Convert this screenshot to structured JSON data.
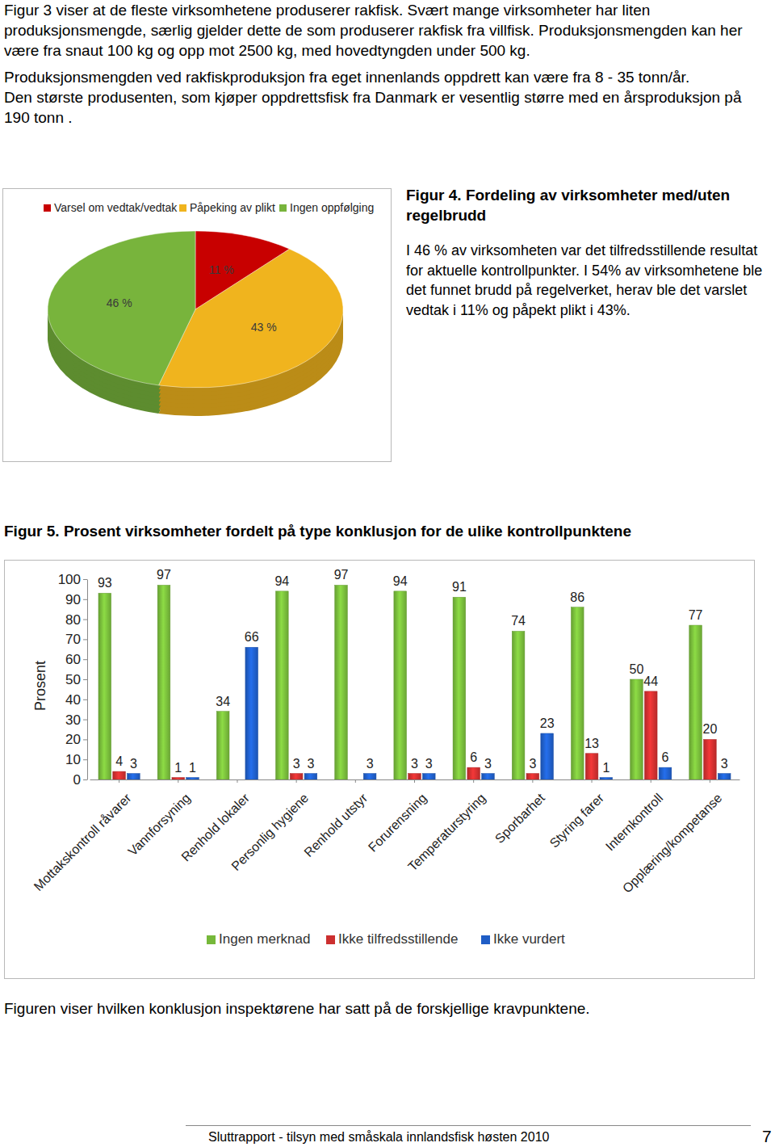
{
  "document": {
    "paragraphs": [
      "Figur 3 viser at de fleste virksomhetene produserer rakfisk. Svært mange virksomheter har liten produksjonsmengde, særlig gjelder dette de som produserer rakfisk fra villfisk. Produksjonsmengden kan her være fra snaut 100 kg og opp mot 2500 kg, med hovedtyngden under 500 kg.",
      "Produksjonsmengden ved rakfiskproduksjon fra eget innenlands oppdrett kan være fra 8 - 35 tonn/år.",
      "Den største produsenten, som kjøper oppdrettsfisk fra Danmark er vesentlig større med en årsproduksjon på 190 tonn ."
    ],
    "figure4_text": "I 46 % av virksomheten var det tilfredsstillende resultat for aktuelle kontrollpunkter. I 54% av virksomhetene ble det funnet brudd på regelverket, herav ble det varslet vedtak i 11% og påpekt plikt i 43%.",
    "figure5_note": "Figuren viser hvilken konklusjon inspektørene har satt på de forskjellige kravpunktene.",
    "footer": "Sluttrapport - tilsyn med småskala innlandsfisk høsten 2010",
    "page_number": "7"
  },
  "chart_data": [
    {
      "type": "pie",
      "title": "Figur 4. Fordeling av virksomheter med/uten regelbrudd",
      "categories": [
        "Varsel om vedtak/vedtak",
        "Påpeking av plikt",
        "Ingen oppfølging"
      ],
      "values": [
        11,
        43,
        46
      ],
      "value_labels": [
        "11 %",
        "43 %",
        "46 %"
      ],
      "colors": [
        "#c80000",
        "#f0b41e",
        "#78b43c"
      ],
      "legend": "top",
      "data_labels": true
    },
    {
      "type": "bar",
      "title": "Figur 5. Prosent virksomheter fordelt på type konklusjon for de ulike kontrollpunktene",
      "y_label": "Prosent",
      "categories": [
        "Mottakskontroll råvarer",
        "Vannforsyning",
        "Renhold lokaler",
        "Personlig hygiene",
        "Renhold utstyr",
        "Forurensning",
        "Temperaturstyring",
        "Sporbarhet",
        "Styring farer",
        "Internkontroll",
        "Opplæring/kompetanse"
      ],
      "series": [
        {
          "name": "Ingen merknad",
          "color": "#76b83a",
          "values": [
            93,
            97,
            34,
            94,
            97,
            94,
            91,
            74,
            86,
            50,
            77
          ]
        },
        {
          "name": "Ikke tilfredsstillende",
          "color": "#cc2f2f",
          "values": [
            4,
            1,
            null,
            3,
            null,
            3,
            6,
            3,
            13,
            44,
            20
          ]
        },
        {
          "name": "Ikke vurdert",
          "color": "#1f5dc6",
          "values": [
            3,
            1,
            66,
            3,
            3,
            3,
            3,
            23,
            1,
            6,
            3
          ]
        }
      ],
      "ylim": [
        0,
        100
      ],
      "yticks": [
        0,
        10,
        20,
        30,
        40,
        50,
        60,
        70,
        80,
        90,
        100
      ],
      "grid": false,
      "legend": "bottom",
      "data_labels": true
    }
  ]
}
